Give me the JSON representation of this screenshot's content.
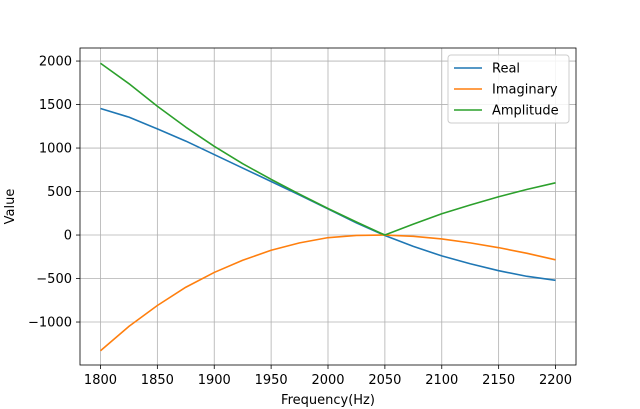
{
  "chart_data": {
    "type": "line",
    "title": "",
    "xlabel": "Frequency(Hz)",
    "ylabel": "Value",
    "xlim": [
      1782,
      2218
    ],
    "ylim": [
      -1494,
      2150
    ],
    "xticks": [
      1800,
      1850,
      1900,
      1950,
      2000,
      2050,
      2100,
      2150,
      2200
    ],
    "xtick_labels": [
      "1800",
      "1850",
      "1900",
      "1950",
      "2000",
      "2050",
      "2100",
      "2150",
      "2200"
    ],
    "yticks": [
      -1000,
      -500,
      0,
      500,
      1000,
      1500,
      2000
    ],
    "ytick_labels": [
      "−1000",
      "−500",
      "0",
      "500",
      "1000",
      "1500",
      "2000"
    ],
    "grid": true,
    "legend_position": "top-right",
    "x": [
      1800,
      1825,
      1850,
      1875,
      1900,
      1925,
      1950,
      1975,
      2000,
      2025,
      2050,
      2075,
      2100,
      2125,
      2150,
      2175,
      2200
    ],
    "series": [
      {
        "name": "Real",
        "color": "#1f77b4",
        "values": [
          1455,
          1355,
          1220,
          1080,
          925,
          770,
          615,
          460,
          300,
          140,
          -5,
          -130,
          -240,
          -330,
          -410,
          -475,
          -520
        ]
      },
      {
        "name": "Imaginary",
        "color": "#ff7f0e",
        "values": [
          -1330,
          -1050,
          -810,
          -600,
          -430,
          -290,
          -175,
          -90,
          -30,
          -5,
          0,
          -15,
          -45,
          -90,
          -145,
          -210,
          -285
        ]
      },
      {
        "name": "Amplitude",
        "color": "#2ca02c",
        "values": [
          1975,
          1740,
          1480,
          1240,
          1020,
          820,
          640,
          470,
          305,
          150,
          0,
          125,
          245,
          345,
          440,
          525,
          600
        ]
      }
    ]
  }
}
